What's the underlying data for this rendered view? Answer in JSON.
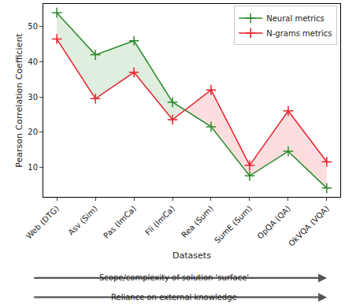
{
  "chart_data": {
    "type": "line",
    "x_label": "Datasets",
    "y_label": "Pearson Correlation Coefficient",
    "categories": [
      "Web (DTG)",
      "Asv (Sim)",
      "Pas (ImCa)",
      "Fli (ImCa)",
      "Rea (Sum)",
      "SumE (Sum)",
      "OpQA (QA)",
      "OkVQA (VQA)"
    ],
    "series": [
      {
        "name": "Neural metrics",
        "color": "#2a8a2a",
        "marker": "+",
        "values": [
          54,
          42,
          46,
          28.5,
          21.5,
          7.5,
          14.5,
          4
        ]
      },
      {
        "name": "N-grams metrics",
        "color": "#e8202a",
        "marker": "+",
        "values": [
          46.5,
          29.5,
          37,
          23.5,
          32,
          10.5,
          26,
          11.5
        ]
      }
    ],
    "ylim": [
      1.5,
      56.5
    ],
    "yticks": [
      10,
      20,
      30,
      40,
      50
    ],
    "grid": false,
    "legend": "upper right",
    "annotations": [
      "Scope/complexity of solution 'surface'",
      "Reliance on external knowledge"
    ]
  }
}
